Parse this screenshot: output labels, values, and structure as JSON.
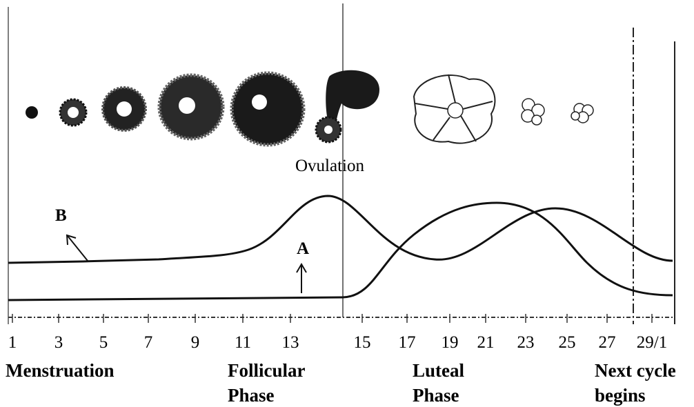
{
  "labels": {
    "ovulation": "Ovulation",
    "a": "A",
    "b": "B"
  },
  "days": [
    "1",
    "3",
    "5",
    "7",
    "9",
    "11",
    "13",
    "15",
    "17",
    "19",
    "21",
    "23",
    "25",
    "27",
    "29/1"
  ],
  "phases": [
    {
      "lines": [
        "Menstruation"
      ]
    },
    {
      "lines": [
        "Follicular",
        "Phase"
      ]
    },
    {
      "lines": [
        "Luteal",
        "Phase"
      ]
    },
    {
      "lines": [
        "Next cycle",
        "begins"
      ]
    }
  ]
}
